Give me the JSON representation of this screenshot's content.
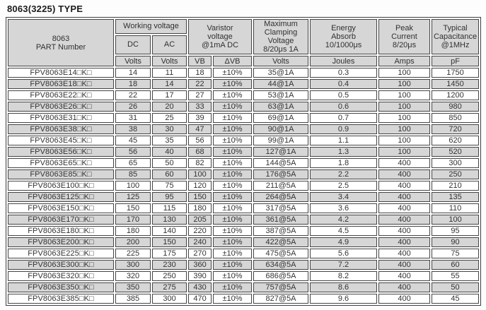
{
  "title": "8063(3225) TYPE",
  "colors": {
    "row_stripe": "#d6d6d6",
    "header_fill": "#d6d6d6",
    "border": "#454545",
    "text": "#333333"
  },
  "table": {
    "header": {
      "part_number": "8063\nPART Number",
      "working_voltage": "Working voltage",
      "dc": "DC",
      "ac": "AC",
      "varistor_voltage": "Varistor\nvoltage\n@1mA DC",
      "max_clamping": "Maximum\nClamping\nVoltage\n8/20μs 1A",
      "energy_absorb": "Energy\nAbsorb\n10/1000μs",
      "peak_current": "Peak\nCurrent\n8/20μs",
      "typical_capacitance": "Typical\nCapacitance\n@1MHz",
      "units": [
        "Volts",
        "Volts",
        "VB",
        "ΔVB",
        "Volts",
        "Joules",
        "Amps",
        "pF"
      ]
    },
    "column_keys": [
      "part-number",
      "dc-volts",
      "ac-volts",
      "vb",
      "delta-vb",
      "clamping-volts",
      "joules",
      "amps",
      "pf"
    ],
    "rows": [
      [
        "FPV8063E14□K□",
        "14",
        "11",
        "18",
        "±10%",
        "35@1A",
        "0.3",
        "100",
        "1750"
      ],
      [
        "FPV8063E18□K□",
        "18",
        "14",
        "22",
        "±10%",
        "44@1A",
        "0.4",
        "100",
        "1450"
      ],
      [
        "FPV8063E22□K□",
        "22",
        "17",
        "27",
        "±10%",
        "53@1A",
        "0.5",
        "100",
        "1200"
      ],
      [
        "FPV8063E26□K□",
        "26",
        "20",
        "33",
        "±10%",
        "63@1A",
        "0.6",
        "100",
        "980"
      ],
      [
        "FPV8063E31□K□",
        "31",
        "25",
        "39",
        "±10%",
        "69@1A",
        "0.7",
        "100",
        "850"
      ],
      [
        "FPV8063E38□K□",
        "38",
        "30",
        "47",
        "±10%",
        "90@1A",
        "0.9",
        "100",
        "720"
      ],
      [
        "FPV8063E45□K□",
        "45",
        "35",
        "56",
        "±10%",
        "99@1A",
        "1.1",
        "100",
        "620"
      ],
      [
        "FPV8063E56□K□",
        "56",
        "40",
        "68",
        "±10%",
        "127@1A",
        "1.3",
        "100",
        "520"
      ],
      [
        "FPV8063E65□K□",
        "65",
        "50",
        "82",
        "±10%",
        "144@5A",
        "1.8",
        "400",
        "300"
      ],
      [
        "FPV8063E85□K□",
        "85",
        "60",
        "100",
        "±10%",
        "176@5A",
        "2.2",
        "400",
        "250"
      ],
      [
        "FPV8063E100□K□",
        "100",
        "75",
        "120",
        "±10%",
        "211@5A",
        "2.5",
        "400",
        "210"
      ],
      [
        "FPV8063E125□K□",
        "125",
        "95",
        "150",
        "±10%",
        "264@5A",
        "3.4",
        "400",
        "135"
      ],
      [
        "FPV8063E150□K□",
        "150",
        "115",
        "180",
        "±10%",
        "317@5A",
        "3.6",
        "400",
        "110"
      ],
      [
        "FPV8063E170□K□",
        "170",
        "130",
        "205",
        "±10%",
        "361@5A",
        "4.2",
        "400",
        "100"
      ],
      [
        "FPV8063E180□K□",
        "180",
        "140",
        "220",
        "±10%",
        "387@5A",
        "4.5",
        "400",
        "95"
      ],
      [
        "FPV8063E200□K□",
        "200",
        "150",
        "240",
        "±10%",
        "422@5A",
        "4.9",
        "400",
        "90"
      ],
      [
        "FPV8063E225□K□",
        "225",
        "175",
        "270",
        "±10%",
        "475@5A",
        "5.6",
        "400",
        "75"
      ],
      [
        "FPV8063E300□K□",
        "300",
        "230",
        "360",
        "±10%",
        "634@5A",
        "7.2",
        "400",
        "60"
      ],
      [
        "FPV8063E320□K□",
        "320",
        "250",
        "390",
        "±10%",
        "686@5A",
        "8.2",
        "400",
        "55"
      ],
      [
        "FPV8063E350□K□",
        "350",
        "275",
        "430",
        "±10%",
        "757@5A",
        "8.6",
        "400",
        "50"
      ],
      [
        "FPV8063E385□K□",
        "385",
        "300",
        "470",
        "±10%",
        "827@5A",
        "9.6",
        "400",
        "45"
      ]
    ]
  }
}
